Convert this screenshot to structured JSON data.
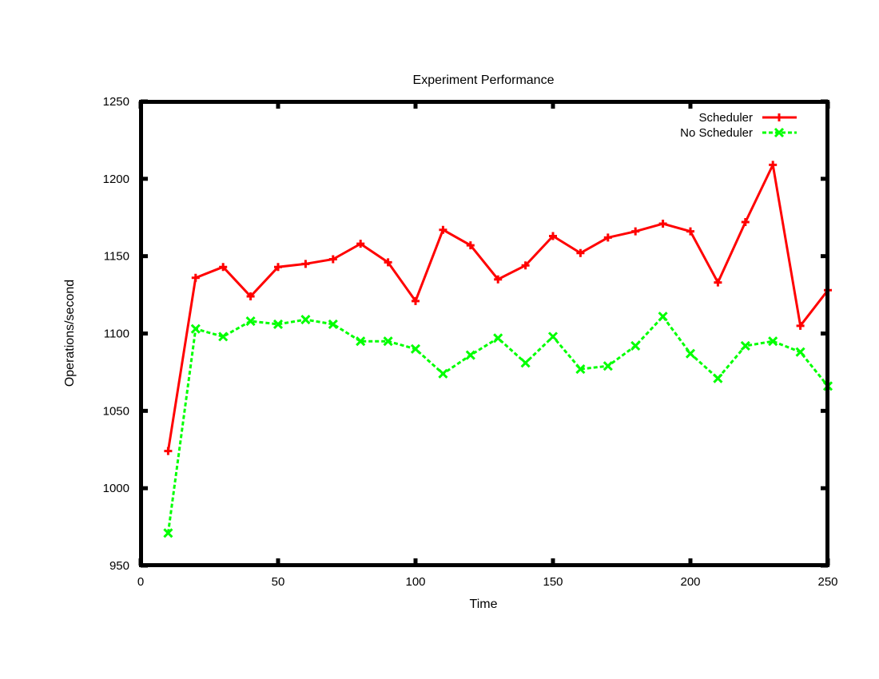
{
  "chart_data": {
    "type": "line",
    "title": "Experiment Performance",
    "xlabel": "Time",
    "ylabel": "Operations/second",
    "xlim": [
      0,
      250
    ],
    "ylim": [
      950,
      1250
    ],
    "xticks": [
      0,
      50,
      100,
      150,
      200,
      250
    ],
    "yticks": [
      950,
      1000,
      1050,
      1100,
      1150,
      1200,
      1250
    ],
    "grid": false,
    "legend_position": "top-right",
    "series": [
      {
        "name": "Scheduler",
        "color": "#ff0000",
        "marker": "plus",
        "line_style": "solid",
        "x": [
          10,
          20,
          30,
          40,
          50,
          60,
          70,
          80,
          90,
          100,
          110,
          120,
          130,
          140,
          150,
          160,
          170,
          180,
          190,
          200,
          210,
          220,
          230,
          240,
          250
        ],
        "y": [
          1024,
          1136,
          1143,
          1124,
          1143,
          1145,
          1148,
          1158,
          1146,
          1121,
          1167,
          1157,
          1135,
          1144,
          1163,
          1152,
          1162,
          1166,
          1171,
          1166,
          1133,
          1172,
          1209,
          1105,
          1128
        ]
      },
      {
        "name": "No Scheduler",
        "color": "#00ff00",
        "marker": "x",
        "line_style": "dashed",
        "x": [
          10,
          20,
          30,
          40,
          50,
          60,
          70,
          80,
          90,
          100,
          110,
          120,
          130,
          140,
          150,
          160,
          170,
          180,
          190,
          200,
          210,
          220,
          230,
          240,
          250
        ],
        "y": [
          971,
          1103,
          1098,
          1108,
          1106,
          1109,
          1106,
          1095,
          1095,
          1090,
          1074,
          1086,
          1097,
          1081,
          1098,
          1077,
          1079,
          1092,
          1111,
          1087,
          1071,
          1092,
          1095,
          1088,
          1066
        ]
      }
    ]
  }
}
